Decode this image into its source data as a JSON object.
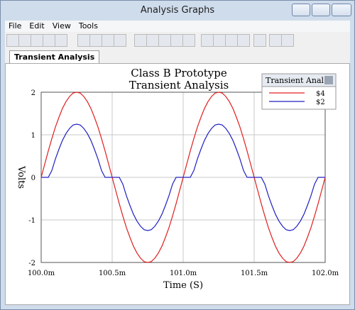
{
  "window": {
    "title": "Analysis Graphs",
    "menu": [
      "File",
      "Edit",
      "View",
      "Tools"
    ],
    "tab": "Transient Analysis"
  },
  "chart_data": {
    "type": "line",
    "title": [
      "Class B Prototype",
      "Transient Analysis"
    ],
    "x_label": "Time (S)",
    "y_label": "Volts",
    "legend_title": "Transient Anal...",
    "grid": true,
    "xlim": [
      0.1,
      0.102
    ],
    "xticks": [
      {
        "value": 0.1,
        "label": "100.0m"
      },
      {
        "value": 0.1005,
        "label": "100.5m"
      },
      {
        "value": 0.101,
        "label": "101.0m"
      },
      {
        "value": 0.1015,
        "label": "101.5m"
      },
      {
        "value": 0.102,
        "label": "102.0m"
      }
    ],
    "ylim": [
      -2,
      2
    ],
    "yticks": [
      -2,
      -1,
      0,
      1,
      2
    ],
    "x": [
      0.1,
      0.100025,
      0.10005,
      0.100075,
      0.1001,
      0.100125,
      0.10015,
      0.100175,
      0.1002,
      0.100225,
      0.10025,
      0.100275,
      0.1003,
      0.100325,
      0.10035,
      0.100375,
      0.1004,
      0.100425,
      0.10045,
      0.100475,
      0.1005,
      0.100525,
      0.10055,
      0.100575,
      0.1006,
      0.100625,
      0.10065,
      0.100675,
      0.1007,
      0.100725,
      0.10075,
      0.100775,
      0.1008,
      0.100825,
      0.10085,
      0.100875,
      0.1009,
      0.100925,
      0.10095,
      0.100975,
      0.101,
      0.101025,
      0.10105,
      0.101075,
      0.1011,
      0.101125,
      0.10115,
      0.101175,
      0.1012,
      0.101225,
      0.10125,
      0.101275,
      0.1013,
      0.101325,
      0.10135,
      0.101375,
      0.1014,
      0.101425,
      0.10145,
      0.101475,
      0.1015,
      0.101525,
      0.10155,
      0.101575,
      0.1016,
      0.101625,
      0.10165,
      0.101675,
      0.1017,
      0.101725,
      0.10175,
      0.101775,
      0.1018,
      0.101825,
      0.10185,
      0.101875,
      0.1019,
      0.101925,
      0.10195,
      0.101975,
      0.102
    ],
    "series": [
      {
        "name": "$4",
        "color": "#e02020",
        "values": [
          0,
          0.31,
          0.62,
          0.91,
          1.18,
          1.41,
          1.62,
          1.78,
          1.9,
          1.98,
          2,
          1.98,
          1.9,
          1.78,
          1.62,
          1.41,
          1.18,
          0.91,
          0.62,
          0.31,
          0,
          -0.31,
          -0.62,
          -0.91,
          -1.18,
          -1.41,
          -1.62,
          -1.78,
          -1.9,
          -1.98,
          -2,
          -1.98,
          -1.9,
          -1.78,
          -1.62,
          -1.41,
          -1.18,
          -0.91,
          -0.62,
          -0.31,
          0,
          0.31,
          0.62,
          0.91,
          1.18,
          1.41,
          1.62,
          1.78,
          1.9,
          1.98,
          2,
          1.98,
          1.9,
          1.78,
          1.62,
          1.41,
          1.18,
          0.91,
          0.62,
          0.31,
          0,
          -0.31,
          -0.62,
          -0.91,
          -1.18,
          -1.41,
          -1.62,
          -1.78,
          -1.9,
          -1.98,
          -2,
          -1.98,
          -1.9,
          -1.78,
          -1.62,
          -1.41,
          -1.18,
          -0.91,
          -0.62,
          -0.31,
          0
        ]
      },
      {
        "name": "$2",
        "color": "#2020c0",
        "values": [
          0,
          0,
          0,
          0.16,
          0.43,
          0.66,
          0.87,
          1.03,
          1.15,
          1.23,
          1.25,
          1.23,
          1.15,
          1.03,
          0.87,
          0.66,
          0.43,
          0.16,
          0,
          0,
          0,
          0,
          0,
          -0.16,
          -0.43,
          -0.66,
          -0.87,
          -1.03,
          -1.15,
          -1.23,
          -1.25,
          -1.23,
          -1.15,
          -1.03,
          -0.87,
          -0.66,
          -0.43,
          -0.16,
          0,
          0,
          0,
          0,
          0,
          0.16,
          0.43,
          0.66,
          0.87,
          1.03,
          1.15,
          1.23,
          1.25,
          1.23,
          1.15,
          1.03,
          0.87,
          0.66,
          0.43,
          0.16,
          0,
          0,
          0,
          0,
          0,
          -0.16,
          -0.43,
          -0.66,
          -0.87,
          -1.03,
          -1.15,
          -1.23,
          -1.25,
          -1.23,
          -1.15,
          -1.03,
          -0.87,
          -0.66,
          -0.43,
          -0.16,
          0,
          0,
          0
        ]
      }
    ]
  }
}
